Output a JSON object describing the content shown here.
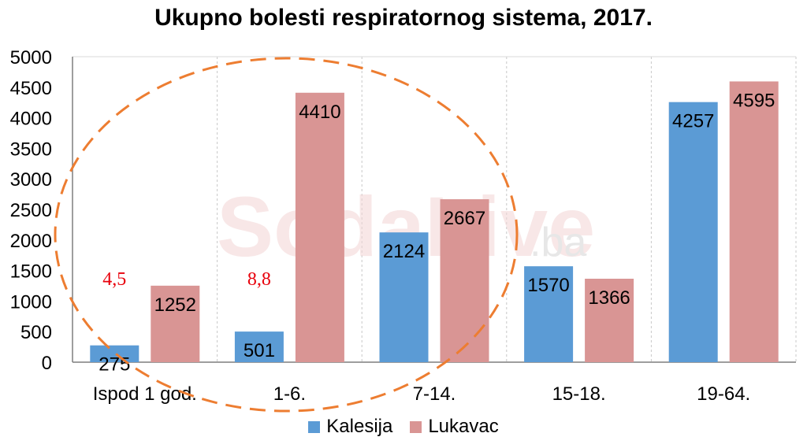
{
  "chart_data": {
    "type": "bar",
    "title": "Ukupno bolesti respiratornog sistema, 2017.",
    "categories": [
      "Ispod 1 god.",
      "1-6.",
      "7-14.",
      "15-18.",
      "19-64."
    ],
    "series": [
      {
        "name": "Kalesija",
        "color": "#5b9bd5",
        "values": [
          275,
          501,
          2124,
          1570,
          4257
        ]
      },
      {
        "name": "Lukavac",
        "color": "#d99594",
        "values": [
          1252,
          4410,
          2667,
          1366,
          4595
        ]
      }
    ],
    "ylim": [
      0,
      5000
    ],
    "yticks": [
      0,
      500,
      1000,
      1500,
      2000,
      2500,
      3000,
      3500,
      4000,
      4500,
      5000
    ],
    "grid": "vertical-dashed",
    "legend": "bottom",
    "annotations": [
      {
        "category": "Ispod 1 god.",
        "text": "4,5"
      },
      {
        "category": "1-6.",
        "text": "8,8"
      }
    ],
    "highlight_color": "#ed7d31"
  },
  "watermark": {
    "brand": "SodaLive",
    "suffix": ".ba"
  }
}
